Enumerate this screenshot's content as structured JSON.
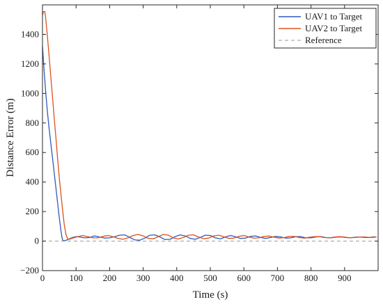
{
  "chart_data": {
    "type": "line",
    "title": "",
    "xlabel": "Time (s)",
    "ylabel": "Distance Error (m)",
    "xlim": [
      0,
      1000
    ],
    "ylim": [
      -200,
      1600
    ],
    "xticks": [
      0,
      100,
      200,
      300,
      400,
      500,
      600,
      700,
      800,
      900
    ],
    "yticks": [
      -200,
      0,
      200,
      400,
      600,
      800,
      1000,
      1200,
      1400
    ],
    "grid": false,
    "legend_position": "top-right",
    "series": [
      {
        "name": "UAV1 to Target",
        "color": "#2f59b8",
        "style": "solid",
        "points": [
          [
            0,
            1320
          ],
          [
            5,
            1150
          ],
          [
            10,
            1000
          ],
          [
            15,
            870
          ],
          [
            20,
            760
          ],
          [
            25,
            660
          ],
          [
            30,
            560
          ],
          [
            35,
            460
          ],
          [
            40,
            360
          ],
          [
            45,
            260
          ],
          [
            50,
            160
          ],
          [
            55,
            70
          ],
          [
            58,
            25
          ],
          [
            60,
            8
          ],
          [
            63,
            2
          ],
          [
            70,
            5
          ],
          [
            80,
            15
          ],
          [
            90,
            25
          ],
          [
            100,
            30
          ],
          [
            110,
            28
          ],
          [
            125,
            22
          ],
          [
            140,
            24
          ],
          [
            155,
            35
          ],
          [
            170,
            28
          ],
          [
            185,
            20
          ],
          [
            200,
            22
          ],
          [
            215,
            30
          ],
          [
            230,
            40
          ],
          [
            245,
            42
          ],
          [
            260,
            25
          ],
          [
            275,
            8
          ],
          [
            290,
            6
          ],
          [
            305,
            20
          ],
          [
            320,
            40
          ],
          [
            335,
            42
          ],
          [
            350,
            28
          ],
          [
            365,
            10
          ],
          [
            380,
            12
          ],
          [
            395,
            30
          ],
          [
            410,
            42
          ],
          [
            425,
            35
          ],
          [
            440,
            18
          ],
          [
            455,
            12
          ],
          [
            470,
            25
          ],
          [
            485,
            40
          ],
          [
            500,
            38
          ],
          [
            515,
            22
          ],
          [
            530,
            15
          ],
          [
            545,
            28
          ],
          [
            560,
            38
          ],
          [
            575,
            30
          ],
          [
            590,
            18
          ],
          [
            605,
            20
          ],
          [
            620,
            32
          ],
          [
            635,
            35
          ],
          [
            650,
            25
          ],
          [
            665,
            18
          ],
          [
            680,
            25
          ],
          [
            695,
            32
          ],
          [
            710,
            28
          ],
          [
            725,
            20
          ],
          [
            740,
            22
          ],
          [
            755,
            30
          ],
          [
            770,
            30
          ],
          [
            785,
            22
          ],
          [
            800,
            22
          ],
          [
            815,
            28
          ],
          [
            830,
            30
          ],
          [
            845,
            24
          ],
          [
            860,
            22
          ],
          [
            875,
            27
          ],
          [
            890,
            28
          ],
          [
            905,
            24
          ],
          [
            920,
            23
          ],
          [
            935,
            27
          ],
          [
            950,
            27
          ],
          [
            965,
            24
          ],
          [
            980,
            25
          ],
          [
            995,
            28
          ]
        ]
      },
      {
        "name": "UAV2 to Target",
        "color": "#d9531e",
        "style": "solid",
        "points": [
          [
            0,
            1530
          ],
          [
            3,
            1555
          ],
          [
            7,
            1555
          ],
          [
            10,
            1500
          ],
          [
            15,
            1380
          ],
          [
            20,
            1250
          ],
          [
            25,
            1110
          ],
          [
            30,
            970
          ],
          [
            35,
            830
          ],
          [
            40,
            700
          ],
          [
            45,
            560
          ],
          [
            50,
            430
          ],
          [
            55,
            320
          ],
          [
            60,
            210
          ],
          [
            65,
            110
          ],
          [
            70,
            45
          ],
          [
            75,
            15
          ],
          [
            80,
            12
          ],
          [
            90,
            20
          ],
          [
            105,
            30
          ],
          [
            120,
            38
          ],
          [
            135,
            30
          ],
          [
            150,
            22
          ],
          [
            165,
            22
          ],
          [
            180,
            32
          ],
          [
            195,
            38
          ],
          [
            210,
            30
          ],
          [
            225,
            18
          ],
          [
            240,
            12
          ],
          [
            255,
            22
          ],
          [
            270,
            38
          ],
          [
            285,
            45
          ],
          [
            300,
            35
          ],
          [
            315,
            18
          ],
          [
            330,
            15
          ],
          [
            345,
            30
          ],
          [
            360,
            45
          ],
          [
            375,
            40
          ],
          [
            390,
            22
          ],
          [
            405,
            14
          ],
          [
            420,
            25
          ],
          [
            435,
            40
          ],
          [
            450,
            42
          ],
          [
            465,
            28
          ],
          [
            480,
            16
          ],
          [
            495,
            20
          ],
          [
            510,
            35
          ],
          [
            525,
            40
          ],
          [
            540,
            30
          ],
          [
            555,
            18
          ],
          [
            570,
            20
          ],
          [
            585,
            32
          ],
          [
            600,
            38
          ],
          [
            615,
            28
          ],
          [
            630,
            20
          ],
          [
            645,
            22
          ],
          [
            660,
            32
          ],
          [
            675,
            34
          ],
          [
            690,
            26
          ],
          [
            705,
            20
          ],
          [
            720,
            24
          ],
          [
            735,
            32
          ],
          [
            750,
            32
          ],
          [
            765,
            24
          ],
          [
            780,
            20
          ],
          [
            795,
            26
          ],
          [
            810,
            30
          ],
          [
            825,
            30
          ],
          [
            840,
            24
          ],
          [
            855,
            22
          ],
          [
            870,
            27
          ],
          [
            885,
            30
          ],
          [
            900,
            27
          ],
          [
            915,
            23
          ],
          [
            930,
            24
          ],
          [
            945,
            28
          ],
          [
            960,
            28
          ],
          [
            975,
            25
          ],
          [
            990,
            30
          ]
        ]
      },
      {
        "name": "Reference",
        "color": "#999999",
        "style": "dashed",
        "points": [
          [
            0,
            0
          ],
          [
            1000,
            0
          ]
        ]
      }
    ]
  }
}
